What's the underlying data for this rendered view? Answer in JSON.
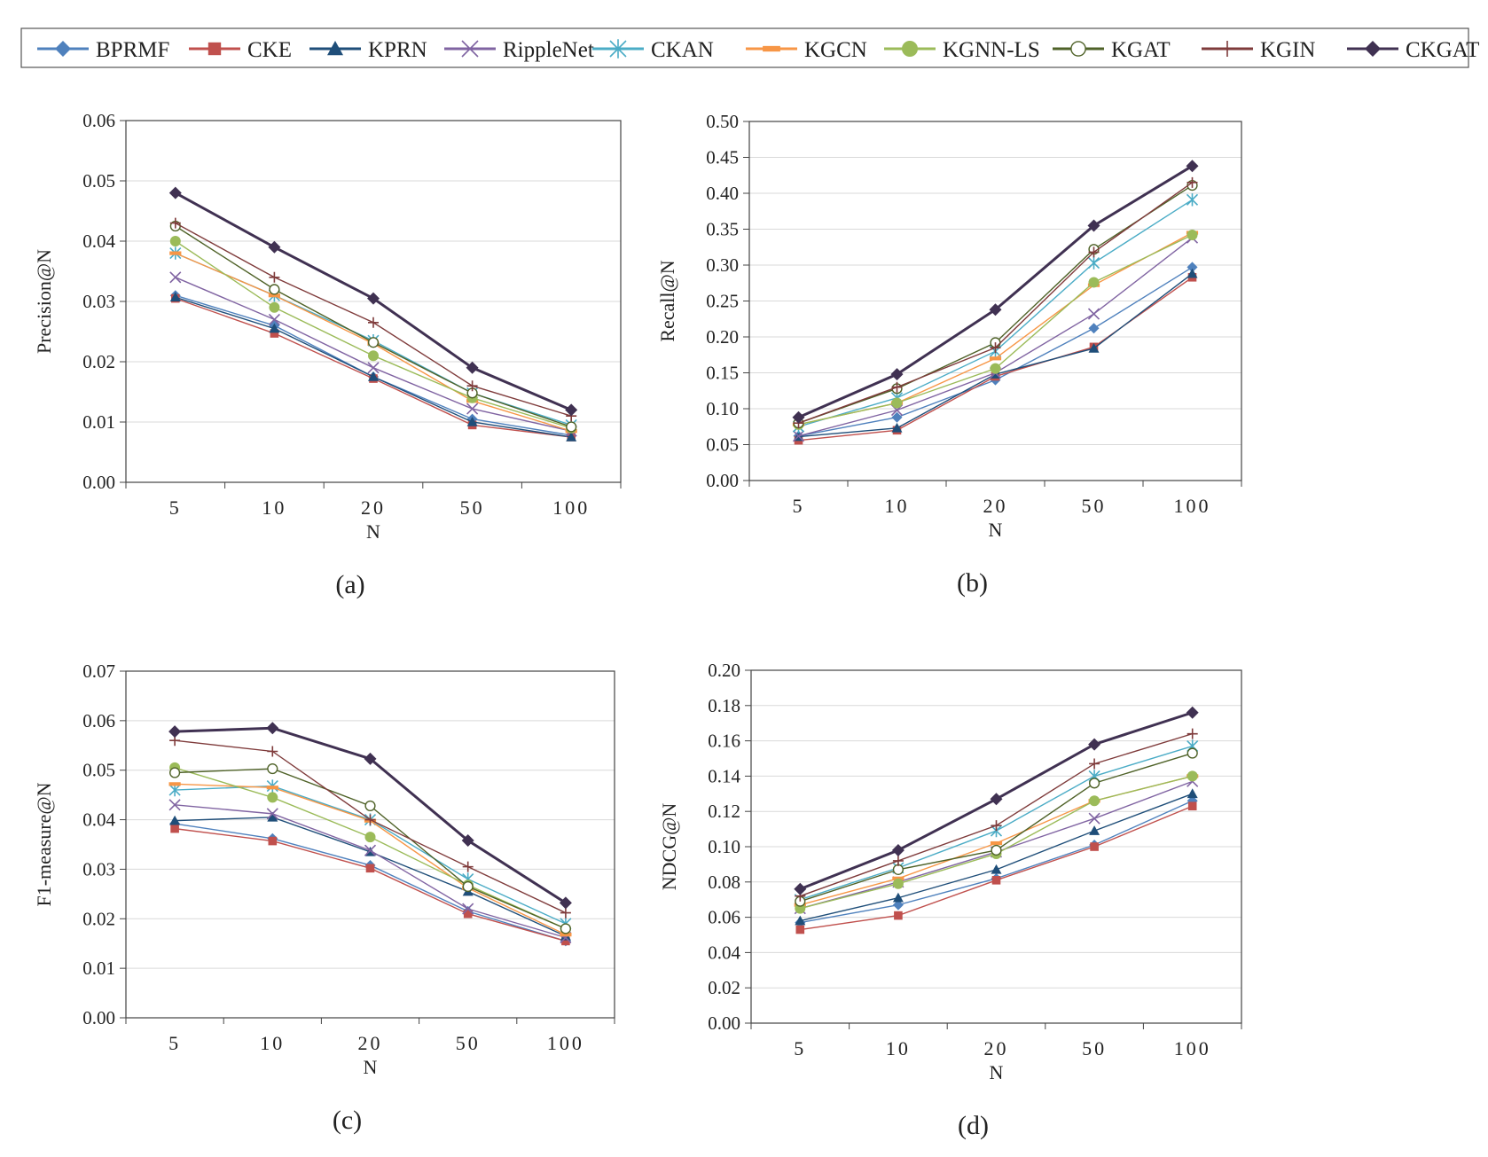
{
  "legend": {
    "series_order": [
      "BPRMF",
      "CKE",
      "KPRN",
      "RippleNet",
      "CKAN",
      "KGCN",
      "KGNN-LS",
      "KGAT",
      "KGIN",
      "CKGAT"
    ]
  },
  "styles": {
    "BPRMF": {
      "color": "#4f81bd",
      "marker": "diamond"
    },
    "CKE": {
      "color": "#c0504d",
      "marker": "square"
    },
    "KPRN": {
      "color": "#1f4e79",
      "marker": "triangle"
    },
    "RippleNet": {
      "color": "#8064a2",
      "marker": "x"
    },
    "CKAN": {
      "color": "#4bacc6",
      "marker": "star"
    },
    "KGCN": {
      "color": "#f79646",
      "marker": "dash"
    },
    "KGNN-LS": {
      "color": "#9bbb59",
      "marker": "circle"
    },
    "KGAT": {
      "color": "#4f6228",
      "marker": "ocircle"
    },
    "KGIN": {
      "color": "#7f3b3b",
      "marker": "plus"
    },
    "CKGAT": {
      "color": "#403152",
      "marker": "diamond"
    }
  },
  "chart_data": [
    {
      "id": "a",
      "type": "line",
      "panel_label": "(a)",
      "xlabel": "N",
      "ylabel": "Precision@N",
      "categories": [
        "5",
        "10",
        "20",
        "50",
        "100"
      ],
      "ylim": [
        0,
        0.06
      ],
      "yticks": [
        "0.00",
        "0.01",
        "0.02",
        "0.03",
        "0.04",
        "0.05",
        "0.06"
      ],
      "series": [
        {
          "name": "BPRMF",
          "values": [
            0.031,
            0.026,
            0.0175,
            0.0105,
            0.0078
          ]
        },
        {
          "name": "CKE",
          "values": [
            0.0305,
            0.0247,
            0.0172,
            0.0095,
            0.0075
          ]
        },
        {
          "name": "KPRN",
          "values": [
            0.0307,
            0.0255,
            0.0175,
            0.01,
            0.0075
          ]
        },
        {
          "name": "RippleNet",
          "values": [
            0.034,
            0.027,
            0.019,
            0.0122,
            0.0085
          ]
        },
        {
          "name": "CKAN",
          "values": [
            0.038,
            0.031,
            0.0235,
            0.0148,
            0.0095
          ]
        },
        {
          "name": "KGCN",
          "values": [
            0.038,
            0.031,
            0.023,
            0.0135,
            0.0085
          ]
        },
        {
          "name": "KGNN-LS",
          "values": [
            0.04,
            0.029,
            0.021,
            0.014,
            0.009
          ]
        },
        {
          "name": "KGAT",
          "values": [
            0.0425,
            0.032,
            0.0232,
            0.0148,
            0.0092
          ]
        },
        {
          "name": "KGIN",
          "values": [
            0.043,
            0.034,
            0.0265,
            0.016,
            0.011
          ]
        },
        {
          "name": "CKGAT",
          "values": [
            0.048,
            0.039,
            0.0305,
            0.019,
            0.012
          ]
        }
      ]
    },
    {
      "id": "b",
      "type": "line",
      "panel_label": "(b)",
      "xlabel": "N",
      "ylabel": "Recall@N",
      "categories": [
        "5",
        "10",
        "20",
        "50",
        "100"
      ],
      "ylim": [
        0,
        0.5
      ],
      "yticks": [
        "0.00",
        "0.05",
        "0.10",
        "0.15",
        "0.20",
        "0.25",
        "0.30",
        "0.35",
        "0.40",
        "0.45",
        "0.50"
      ],
      "series": [
        {
          "name": "BPRMF",
          "values": [
            0.062,
            0.088,
            0.14,
            0.212,
            0.297
          ]
        },
        {
          "name": "CKE",
          "values": [
            0.056,
            0.07,
            0.145,
            0.186,
            0.283
          ]
        },
        {
          "name": "KPRN",
          "values": [
            0.061,
            0.073,
            0.148,
            0.184,
            0.288
          ]
        },
        {
          "name": "RippleNet",
          "values": [
            0.062,
            0.098,
            0.15,
            0.232,
            0.338
          ]
        },
        {
          "name": "CKAN",
          "values": [
            0.075,
            0.115,
            0.18,
            0.303,
            0.391
          ]
        },
        {
          "name": "KGCN",
          "values": [
            0.078,
            0.108,
            0.17,
            0.272,
            0.345
          ]
        },
        {
          "name": "KGNN-LS",
          "values": [
            0.078,
            0.108,
            0.156,
            0.276,
            0.342
          ]
        },
        {
          "name": "KGAT",
          "values": [
            0.08,
            0.128,
            0.192,
            0.322,
            0.411
          ]
        },
        {
          "name": "KGIN",
          "values": [
            0.08,
            0.13,
            0.185,
            0.318,
            0.415
          ]
        },
        {
          "name": "CKGAT",
          "values": [
            0.088,
            0.148,
            0.238,
            0.355,
            0.438
          ]
        }
      ]
    },
    {
      "id": "c",
      "type": "line",
      "panel_label": "(c)",
      "xlabel": "N",
      "ylabel": "F1-measure@N",
      "categories": [
        "5",
        "10",
        "20",
        "50",
        "100"
      ],
      "ylim": [
        0,
        0.07
      ],
      "yticks": [
        "0.00",
        "0.01",
        "0.02",
        "0.03",
        "0.04",
        "0.05",
        "0.06",
        "0.07"
      ],
      "series": [
        {
          "name": "BPRMF",
          "values": [
            0.0392,
            0.0362,
            0.0308,
            0.0215,
            0.0155
          ]
        },
        {
          "name": "CKE",
          "values": [
            0.0382,
            0.0357,
            0.0302,
            0.021,
            0.0155
          ]
        },
        {
          "name": "KPRN",
          "values": [
            0.0398,
            0.0405,
            0.0335,
            0.0255,
            0.0165
          ]
        },
        {
          "name": "RippleNet",
          "values": [
            0.043,
            0.0412,
            0.0338,
            0.022,
            0.0162
          ]
        },
        {
          "name": "CKAN",
          "values": [
            0.046,
            0.0468,
            0.04,
            0.028,
            0.019
          ]
        },
        {
          "name": "KGCN",
          "values": [
            0.0472,
            0.0465,
            0.0398,
            0.0262,
            0.0168
          ]
        },
        {
          "name": "KGNN-LS",
          "values": [
            0.0505,
            0.0445,
            0.0365,
            0.0268,
            0.018
          ]
        },
        {
          "name": "KGAT",
          "values": [
            0.0495,
            0.0503,
            0.0428,
            0.0265,
            0.018
          ]
        },
        {
          "name": "KGIN",
          "values": [
            0.056,
            0.0538,
            0.04,
            0.0305,
            0.0212
          ]
        },
        {
          "name": "CKGAT",
          "values": [
            0.0578,
            0.0585,
            0.0523,
            0.0358,
            0.0232
          ]
        }
      ]
    },
    {
      "id": "d",
      "type": "line",
      "panel_label": "(d)",
      "xlabel": "N",
      "ylabel": "NDCG@N",
      "categories": [
        "5",
        "10",
        "20",
        "50",
        "100"
      ],
      "ylim": [
        0,
        0.2
      ],
      "yticks": [
        "0.00",
        "0.02",
        "0.04",
        "0.06",
        "0.08",
        "0.10",
        "0.12",
        "0.14",
        "0.16",
        "0.18",
        "0.20"
      ],
      "series": [
        {
          "name": "BPRMF",
          "values": [
            0.057,
            0.067,
            0.082,
            0.101,
            0.126
          ]
        },
        {
          "name": "CKE",
          "values": [
            0.053,
            0.061,
            0.081,
            0.1,
            0.123
          ]
        },
        {
          "name": "KPRN",
          "values": [
            0.058,
            0.071,
            0.087,
            0.109,
            0.13
          ]
        },
        {
          "name": "RippleNet",
          "values": [
            0.065,
            0.08,
            0.097,
            0.116,
            0.137
          ]
        },
        {
          "name": "CKAN",
          "values": [
            0.07,
            0.088,
            0.109,
            0.14,
            0.157
          ]
        },
        {
          "name": "KGCN",
          "values": [
            0.067,
            0.082,
            0.102,
            0.126,
            0.14
          ]
        },
        {
          "name": "KGNN-LS",
          "values": [
            0.065,
            0.079,
            0.096,
            0.126,
            0.14
          ]
        },
        {
          "name": "KGAT",
          "values": [
            0.069,
            0.087,
            0.098,
            0.136,
            0.153
          ]
        },
        {
          "name": "KGIN",
          "values": [
            0.072,
            0.092,
            0.112,
            0.147,
            0.164
          ]
        },
        {
          "name": "CKGAT",
          "values": [
            0.076,
            0.098,
            0.127,
            0.158,
            0.176
          ]
        }
      ]
    }
  ]
}
